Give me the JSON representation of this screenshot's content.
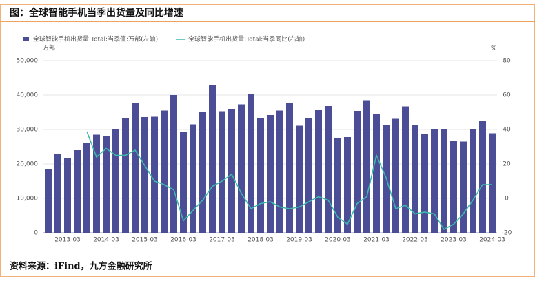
{
  "chart_data": {
    "type": "bar_line",
    "title": "图：全球智能手机当季出货量及同比增速",
    "source": "资料来源：iFind，九方金融研究所",
    "y_unit": "万部",
    "y2_unit": "%",
    "categories": [
      null,
      null,
      "2013-03",
      null,
      null,
      null,
      "2014-03",
      null,
      null,
      null,
      "2015-03",
      null,
      null,
      null,
      "2016-03",
      null,
      null,
      null,
      "2017-03",
      null,
      null,
      null,
      "2018-03",
      null,
      null,
      null,
      "2019-03",
      null,
      null,
      null,
      "2020-03",
      null,
      null,
      null,
      "2021-03",
      null,
      null,
      null,
      "2022-03",
      null,
      null,
      null,
      "2023-03",
      null,
      null,
      null,
      "2024-03"
    ],
    "series": [
      {
        "name": "全球智能手机出货量:Total:当季值:万部(左轴)",
        "color": "#4b4e97",
        "kind": "bar",
        "values": [
          18500,
          23000,
          21800,
          24000,
          26000,
          28500,
          28200,
          30200,
          33300,
          37800,
          33600,
          33700,
          35500,
          40000,
          29200,
          31500,
          35000,
          42800,
          35300,
          36000,
          37300,
          40300,
          33400,
          34200,
          35500,
          37600,
          31100,
          33300,
          35800,
          36800,
          27600,
          27800,
          35400,
          38500,
          34500,
          31300,
          33100,
          36700,
          31400,
          28800,
          30100,
          30000,
          26800,
          26500,
          30200,
          32600,
          28900
        ]
      },
      {
        "name": "全球智能手机出货量:Total:当季同比(右轴)",
        "color": "#3db9a9",
        "kind": "line",
        "axis": "y2",
        "values": [
          null,
          null,
          null,
          null,
          38.8,
          24,
          29,
          25,
          25,
          28,
          19,
          10,
          8,
          5,
          -13,
          -7,
          -1,
          7,
          10,
          14,
          3,
          -6,
          -3,
          -2,
          -5,
          -6,
          -5,
          -2,
          1,
          -1,
          -11,
          -15,
          -3,
          1,
          25,
          12,
          -6,
          -4,
          -9,
          -8,
          -9,
          -18,
          -15,
          -9,
          -1,
          8,
          8
        ]
      }
    ],
    "ylim": [
      0,
      50000
    ],
    "yticks": [
      0,
      {
        "value": 10000,
        "label": "10,000"
      },
      {
        "value": 20000,
        "label": "20,000"
      },
      {
        "value": 30000,
        "label": "30,000"
      },
      {
        "value": 40000,
        "label": "40,000"
      },
      {
        "value": 50000,
        "label": "50,000"
      }
    ],
    "y2lim": [
      -20,
      80
    ],
    "y2ticks": [
      -20,
      0,
      20,
      40,
      60,
      80
    ],
    "grid": true
  }
}
